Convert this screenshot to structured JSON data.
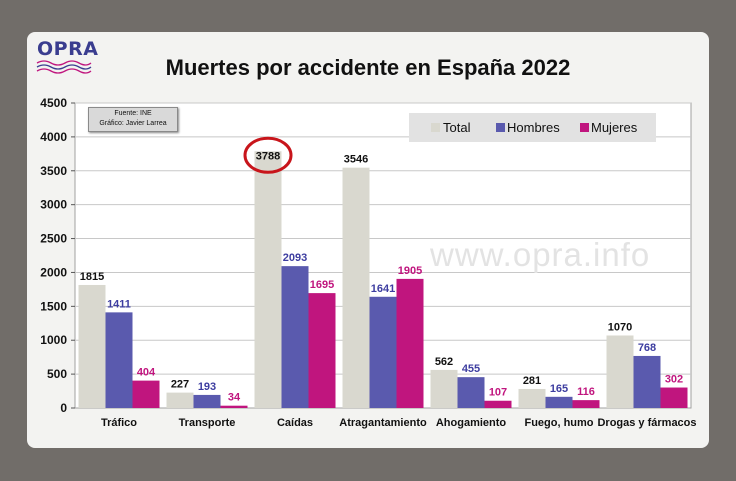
{
  "logo": {
    "text": "OPRA"
  },
  "source_box": {
    "line1": "Fuente: INE",
    "line2": "Gráfico: Javier Larrea"
  },
  "watermark": "www.opra.info",
  "colors": {
    "total": "#d9d8cf",
    "hombres": "#5a5aae",
    "mujeres": "#c0157e",
    "highlight_ring": "#c8151b"
  },
  "chart_data": {
    "type": "bar",
    "title": "Muertes por accidente en España 2022",
    "categories": [
      "Tráfico",
      "Transporte",
      "Caídas",
      "Atragantamiento",
      "Ahogamiento",
      "Fuego, humo",
      "Drogas y fármacos"
    ],
    "series": [
      {
        "name": "Total",
        "values": [
          1815,
          227,
          3788,
          3546,
          562,
          281,
          1070
        ]
      },
      {
        "name": "Hombres",
        "values": [
          1411,
          193,
          2093,
          1641,
          455,
          165,
          768
        ]
      },
      {
        "name": "Mujeres",
        "values": [
          404,
          34,
          1695,
          1905,
          107,
          116,
          302
        ]
      }
    ],
    "ylim": [
      0,
      4500
    ],
    "yticks": [
      0,
      500,
      1000,
      1500,
      2000,
      2500,
      3000,
      3500,
      4000,
      4500
    ],
    "grid": true,
    "legend_position": "top-right",
    "highlight": {
      "category": "Caídas",
      "series": "Total"
    }
  }
}
